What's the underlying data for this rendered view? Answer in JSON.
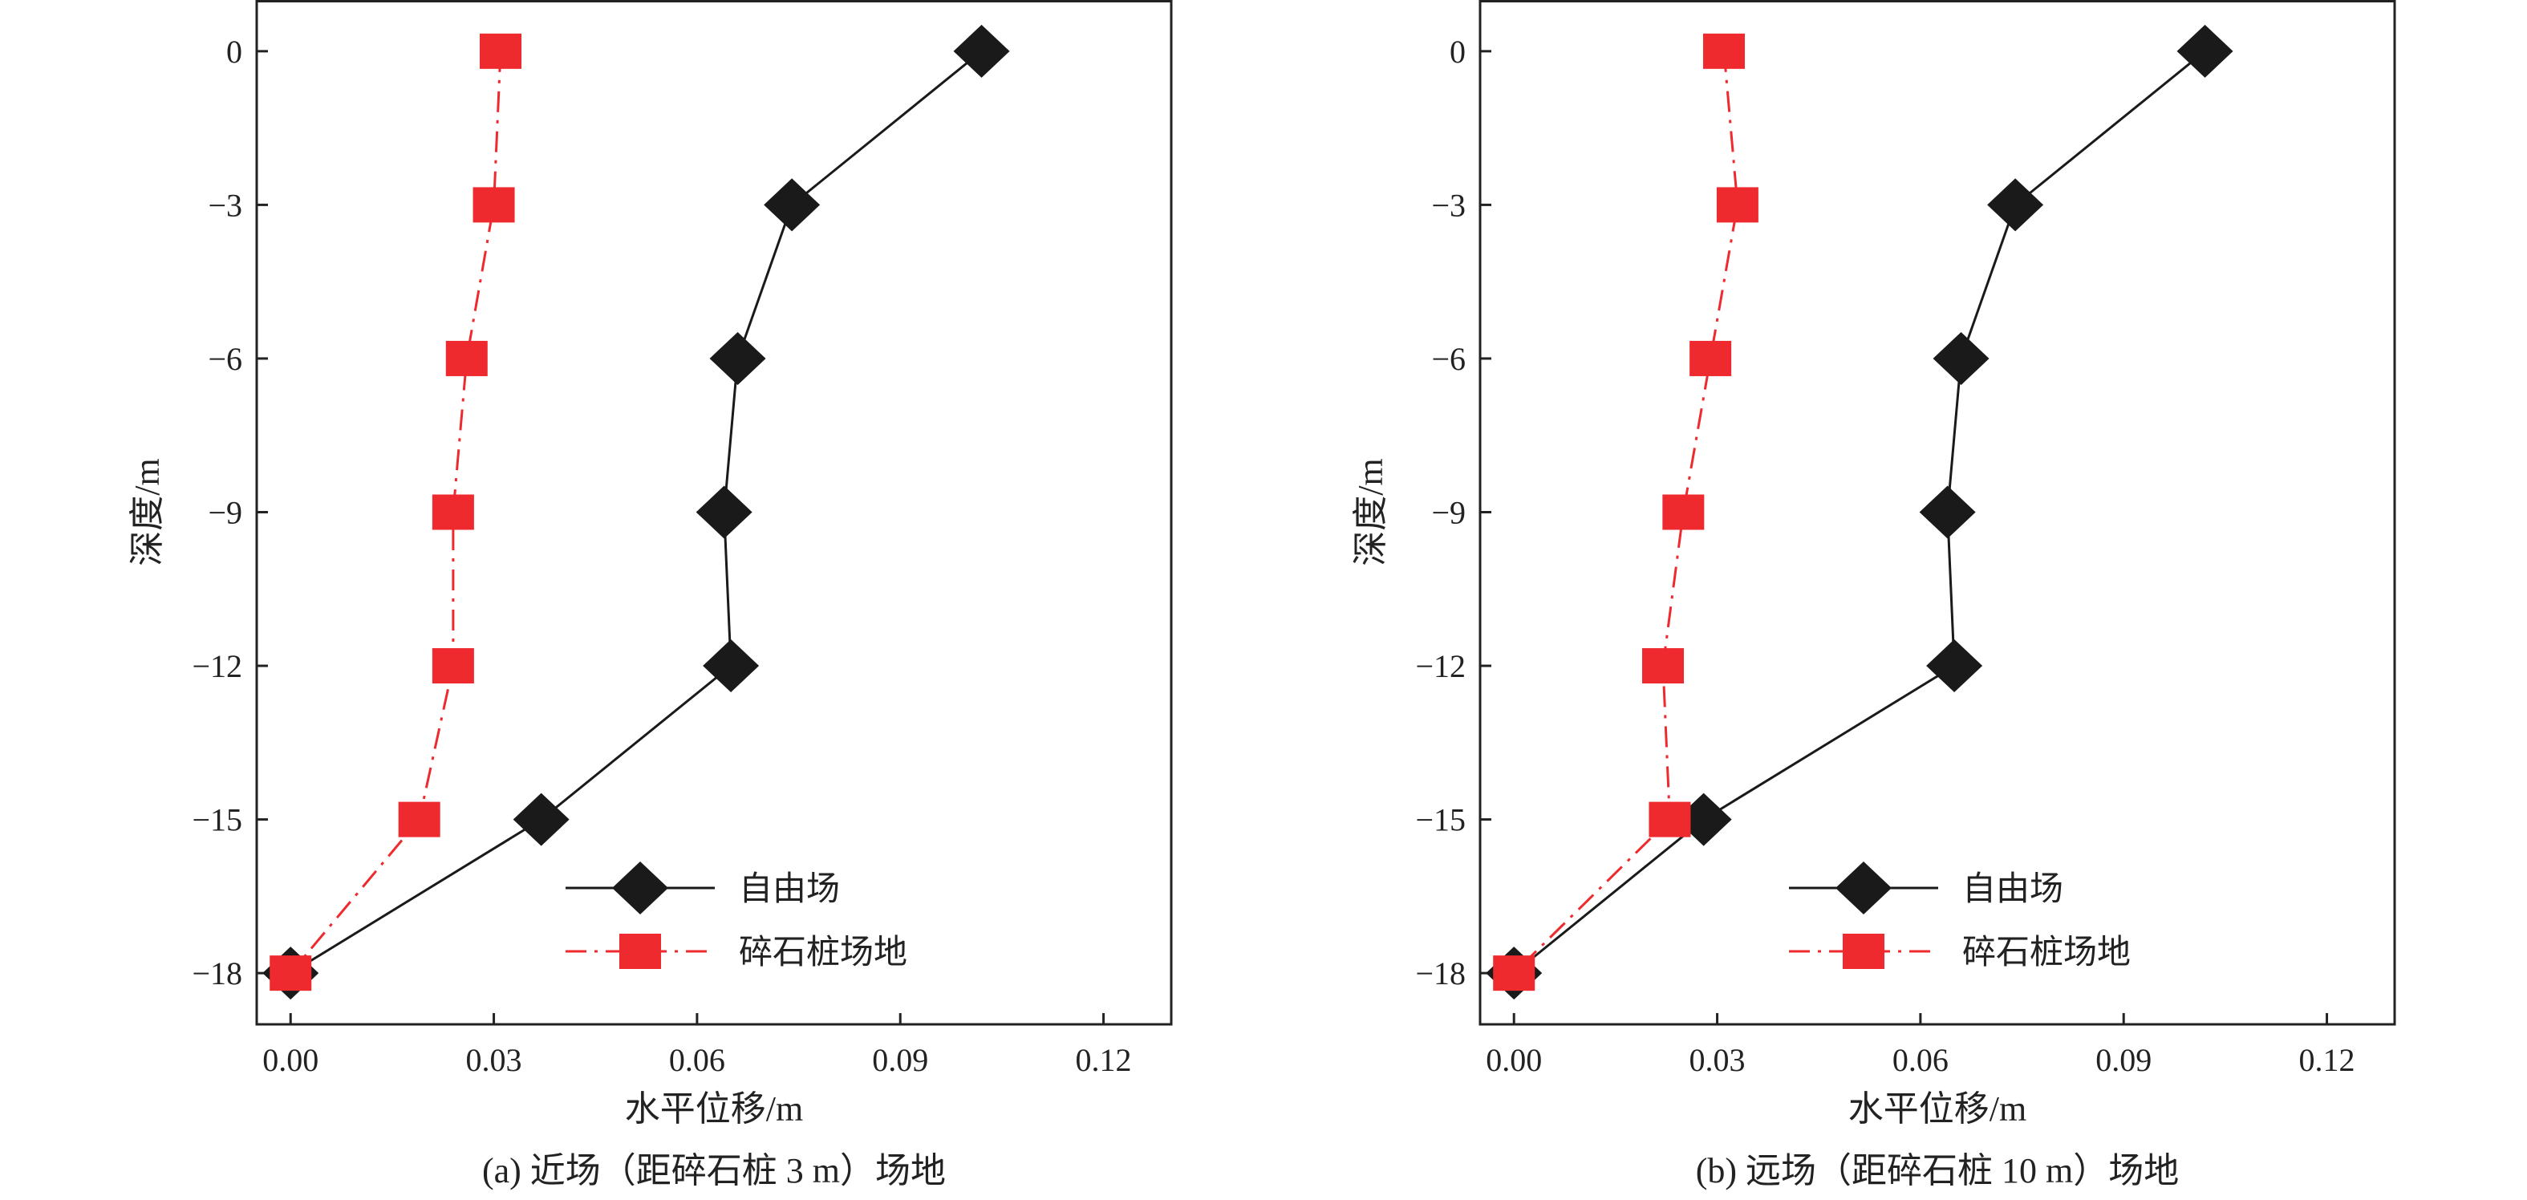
{
  "chart_data": [
    {
      "type": "line",
      "caption": "(a) 近场（距碎石桩 3 m）场地",
      "xlabel": "水平位移/m",
      "ylabel": "深度/m",
      "xlim": [
        -0.005,
        0.13
      ],
      "ylim": [
        -19,
        1
      ],
      "xticks": [
        "0.00",
        "0.03",
        "0.06",
        "0.09",
        "0.12"
      ],
      "yticks": [
        "0",
        "−3",
        "−6",
        "−9",
        "−12",
        "−15",
        "−18"
      ],
      "grid": false,
      "legend_position": "lower-right",
      "y": [
        0,
        -3,
        -6,
        -9,
        -12,
        -15,
        -18
      ],
      "series": [
        {
          "name": "自由场",
          "marker": "diamond",
          "line": "solid",
          "color": "#1a1a1a",
          "x": [
            0.102,
            0.074,
            0.066,
            0.064,
            0.065,
            0.037,
            0.0
          ]
        },
        {
          "name": "碎石桩场地",
          "marker": "square",
          "line": "dash-dot",
          "color": "#ee2a2e",
          "x": [
            0.031,
            0.03,
            0.026,
            0.024,
            0.024,
            0.019,
            0.0
          ]
        }
      ]
    },
    {
      "type": "line",
      "caption": "(b) 远场（距碎石桩 10 m）场地",
      "xlabel": "水平位移/m",
      "ylabel": "深度/m",
      "xlim": [
        -0.005,
        0.13
      ],
      "ylim": [
        -19,
        1
      ],
      "xticks": [
        "0.00",
        "0.03",
        "0.06",
        "0.09",
        "0.12"
      ],
      "yticks": [
        "0",
        "−3",
        "−6",
        "−9",
        "−12",
        "−15",
        "−18"
      ],
      "grid": false,
      "legend_position": "lower-right",
      "y": [
        0,
        -3,
        -6,
        -9,
        -12,
        -15,
        -18
      ],
      "series": [
        {
          "name": "自由场",
          "marker": "diamond",
          "line": "solid",
          "color": "#1a1a1a",
          "x": [
            0.102,
            0.074,
            0.066,
            0.064,
            0.065,
            0.028,
            0.0
          ]
        },
        {
          "name": "碎石桩场地",
          "marker": "square",
          "line": "dash-dot",
          "color": "#ee2a2e",
          "x": [
            0.031,
            0.033,
            0.029,
            0.025,
            0.022,
            0.023,
            0.0
          ]
        }
      ]
    }
  ]
}
